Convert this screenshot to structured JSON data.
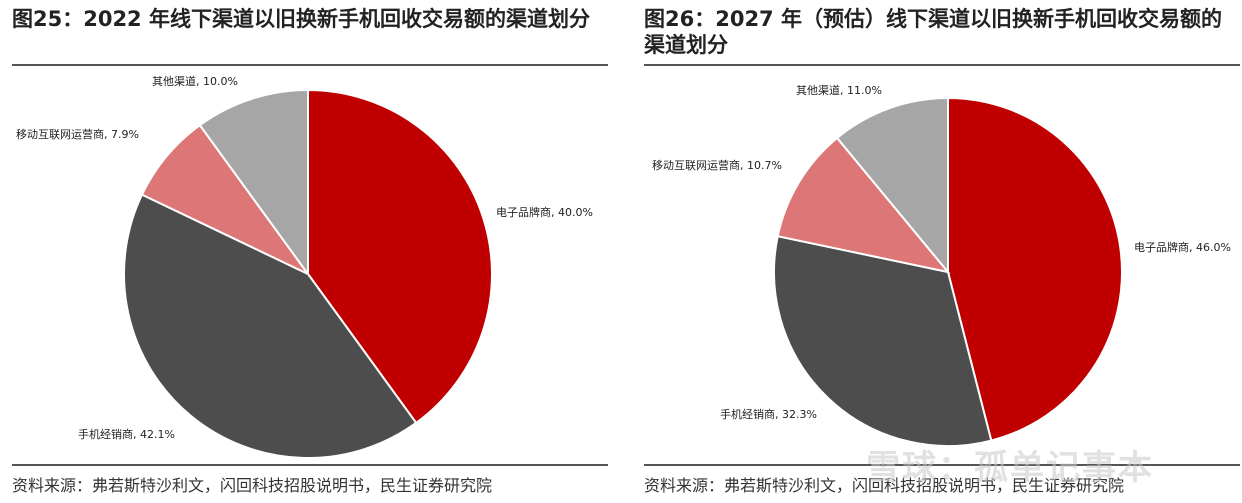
{
  "charts": [
    {
      "title": "图25：2022 年线下渠道以旧换新手机回收交易额的渠道划分",
      "source": "资料来源：弗若斯特沙利文，闪回科技招股说明书，民生证券研究院"
    },
    {
      "title": "图26：2027 年（预估）线下渠道以旧换新手机回收交易额的渠道划分",
      "source": "资料来源：弗若斯特沙利文，闪回科技招股说明书，民生证券研究院"
    }
  ],
  "chart_data": [
    {
      "type": "pie",
      "title": "图25：2022 年线下渠道以旧换新手机回收交易额的渠道划分",
      "slices": [
        {
          "label": "电子品牌商",
          "value": 40.0,
          "display": "电子品牌商, 40.0%",
          "color": "#c00000"
        },
        {
          "label": "手机经销商",
          "value": 42.1,
          "display": "手机经销商, 42.1%",
          "color": "#4d4d4d"
        },
        {
          "label": "移动互联网运营商",
          "value": 7.9,
          "display": "移动互联网运营商, 7.9%",
          "color": "#dd7777"
        },
        {
          "label": "其他渠道",
          "value": 10.0,
          "display": "其他渠道, 10.0%",
          "color": "#a6a6a6"
        }
      ]
    },
    {
      "type": "pie",
      "title": "图26：2027 年（预估）线下渠道以旧换新手机回收交易额的渠道划分",
      "slices": [
        {
          "label": "电子品牌商",
          "value": 46.0,
          "display": "电子品牌商, 46.0%",
          "color": "#c00000"
        },
        {
          "label": "手机经销商",
          "value": 32.3,
          "display": "手机经销商, 32.3%",
          "color": "#4d4d4d"
        },
        {
          "label": "移动互联网运营商",
          "value": 10.7,
          "display": "移动互联网运营商, 10.7%",
          "color": "#dd7777"
        },
        {
          "label": "其他渠道",
          "value": 11.0,
          "display": "其他渠道, 11.0%",
          "color": "#a6a6a6"
        }
      ]
    }
  ],
  "watermark": "雪球：孤单记事本"
}
